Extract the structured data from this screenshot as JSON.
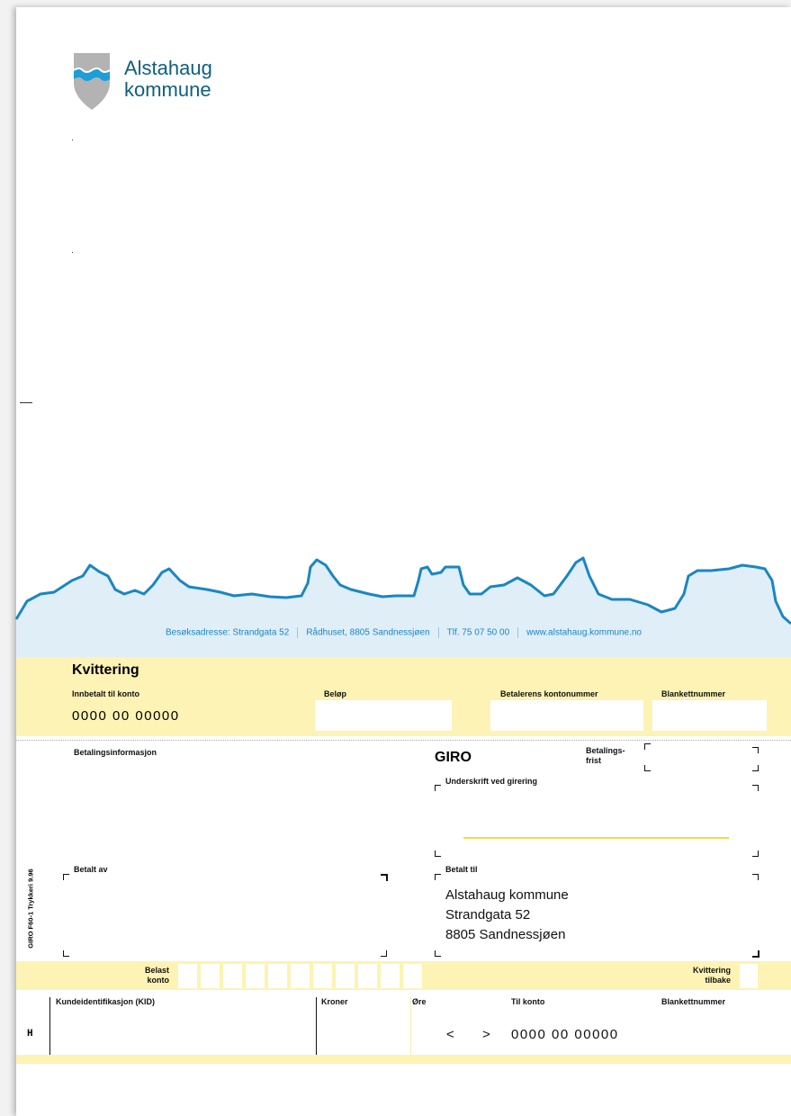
{
  "logo": {
    "line1": "Alstahaug",
    "line2": "kommune"
  },
  "footer": [
    "Besøksadresse: Strandgata 52",
    "Rådhuset, 8805 Sandnessjøen",
    "Tlf. 75 07 50 00",
    "www.alstahaug.kommune.no"
  ],
  "receipt": {
    "title": "Kvittering",
    "paid_to_account_label": "Innbetalt til konto",
    "paid_to_account": "0000 00 00000",
    "amount_label": "Beløp",
    "payer_account_label": "Betalerens kontonummer",
    "form_number_label": "Blankettnummer"
  },
  "giro": {
    "payment_info_label": "Betalingsinformasjon",
    "title": "GIRO",
    "due_label": [
      "Betalings-",
      "frist"
    ],
    "signature_label": "Underskrift ved girering",
    "paid_by_label": "Betalt av",
    "paid_to_label": "Betalt til",
    "paid_to": [
      "Alstahaug kommune",
      "Strandgata 52",
      "8805 Sandnessjøen"
    ],
    "side_text": "GIRO F60-1 Trykkeri 9.96",
    "debit_account_label": [
      "Belast",
      "konto"
    ],
    "receipt_return_label": [
      "Kvittering",
      "tilbake"
    ]
  },
  "bottom": {
    "kid_label": "Kundeidentifikasjon (KID)",
    "kroner_label": "Kroner",
    "ore_label": "Øre",
    "to_account_label": "Til konto",
    "form_number_label": "Blankettnummer",
    "h": "H",
    "lt": "<",
    "gt": ">",
    "to_account": "0000 00 00000"
  }
}
